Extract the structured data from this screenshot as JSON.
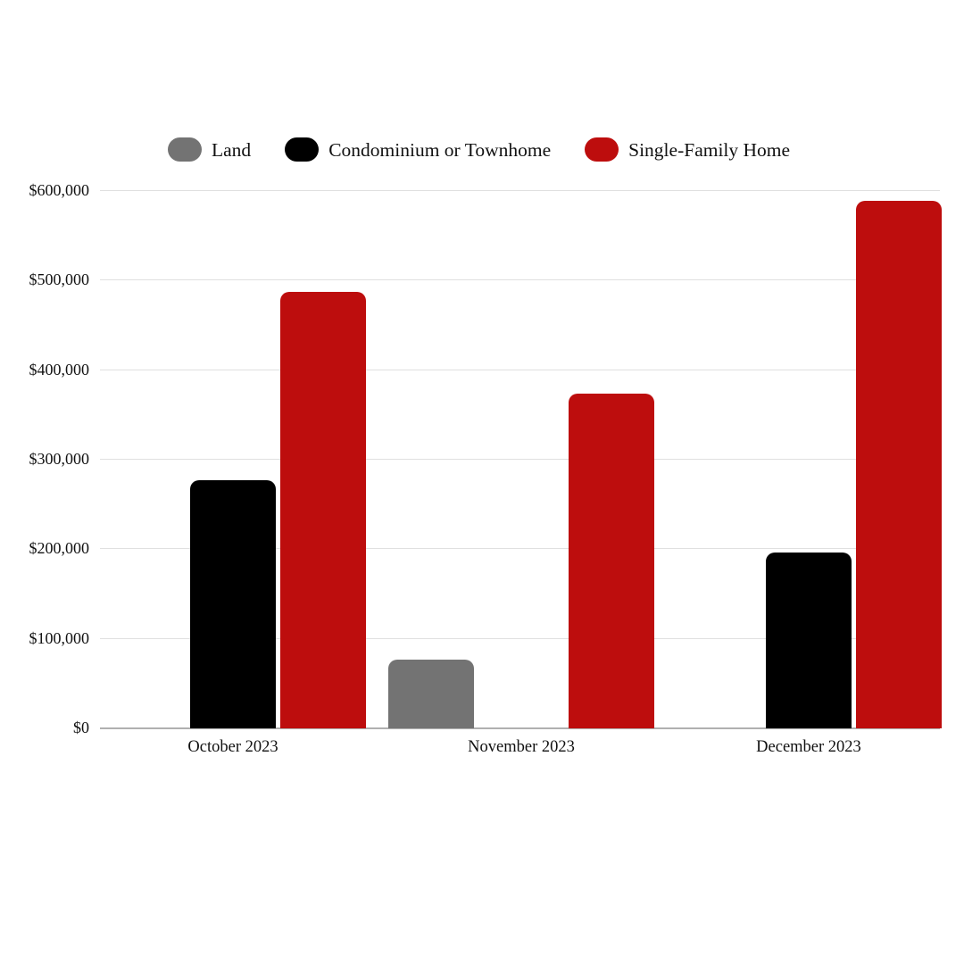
{
  "chart_data": {
    "type": "bar",
    "title": "",
    "xlabel": "",
    "ylabel": "",
    "categories": [
      "October 2023",
      "November 2023",
      "December 2023"
    ],
    "series": [
      {
        "name": "Land",
        "color": "#737373",
        "values": [
          0,
          77000,
          0
        ]
      },
      {
        "name": "Condominium or Townhome",
        "color": "#000000",
        "values": [
          277000,
          0,
          196000
        ]
      },
      {
        "name": "Single-Family Home",
        "color": "#bd0d0d",
        "values": [
          487000,
          374000,
          589000
        ]
      }
    ],
    "ylim": [
      0,
      600000
    ],
    "ytick_step": 100000,
    "ytick_labels": [
      "$0",
      "$100,000",
      "$200,000",
      "$300,000",
      "$400,000",
      "$500,000",
      "$600,000"
    ],
    "grid": true,
    "legend_position": "top",
    "text_color": "#111111",
    "gridline_color": "#e0e0e0",
    "axis_line_color": "#b0b0b0"
  }
}
